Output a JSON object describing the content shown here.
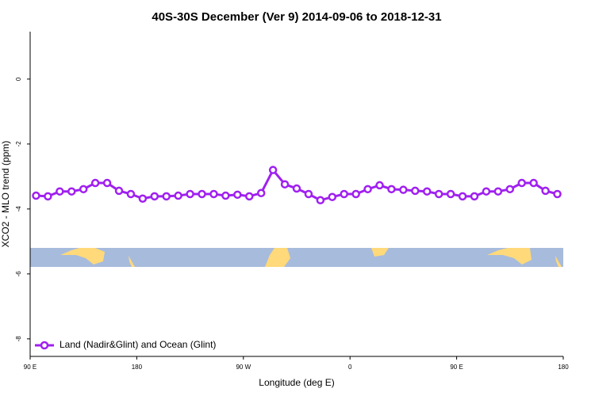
{
  "chart_data": {
    "type": "line",
    "title": "40S-30S December (Ver 9)   2014-09-06 to 2018-12-31",
    "x_label": "Longitude (deg E)",
    "y_label": "XCO2 - MLO trend (ppm)",
    "x": [
      95,
      105,
      115,
      125,
      135,
      145,
      155,
      165,
      175,
      185,
      195,
      205,
      215,
      225,
      235,
      245,
      255,
      265,
      275,
      285,
      295,
      305,
      315,
      325,
      335,
      345,
      355,
      365,
      375,
      385,
      395,
      405,
      415,
      425,
      435,
      445,
      455,
      465,
      475,
      485,
      495,
      505,
      515,
      525,
      535
    ],
    "series": [
      {
        "name": "Land (Nadir&Glint) and Ocean (Glint)",
        "color": "#a020f0",
        "values": [
          -3.59,
          -3.61,
          -3.46,
          -3.46,
          -3.39,
          -3.2,
          -3.2,
          -3.44,
          -3.54,
          -3.68,
          -3.61,
          -3.61,
          -3.59,
          -3.54,
          -3.54,
          -3.54,
          -3.59,
          -3.56,
          -3.61,
          -3.51,
          -2.8,
          -3.24,
          -3.37,
          -3.54,
          -3.73,
          -3.63,
          -3.54,
          -3.54,
          -3.39,
          -3.27,
          -3.39,
          -3.41,
          -3.44,
          -3.46,
          -3.54,
          -3.54,
          -3.61,
          -3.61,
          -3.46,
          -3.46,
          -3.39,
          -3.2,
          -3.2,
          -3.44,
          -3.54
        ]
      }
    ],
    "xlim": [
      90,
      540
    ],
    "xticks": [
      {
        "value": 90,
        "label": "90 E"
      },
      {
        "value": 180,
        "label": "180"
      },
      {
        "value": 270,
        "label": "90 W"
      },
      {
        "value": 360,
        "label": "0"
      },
      {
        "value": 450,
        "label": "90 E"
      },
      {
        "value": 540,
        "label": "180"
      }
    ],
    "ylim": [
      -8.54,
      1.46
    ],
    "yticks": [
      0,
      -2,
      -4,
      -6,
      -8
    ],
    "legend": "bottom-left"
  }
}
